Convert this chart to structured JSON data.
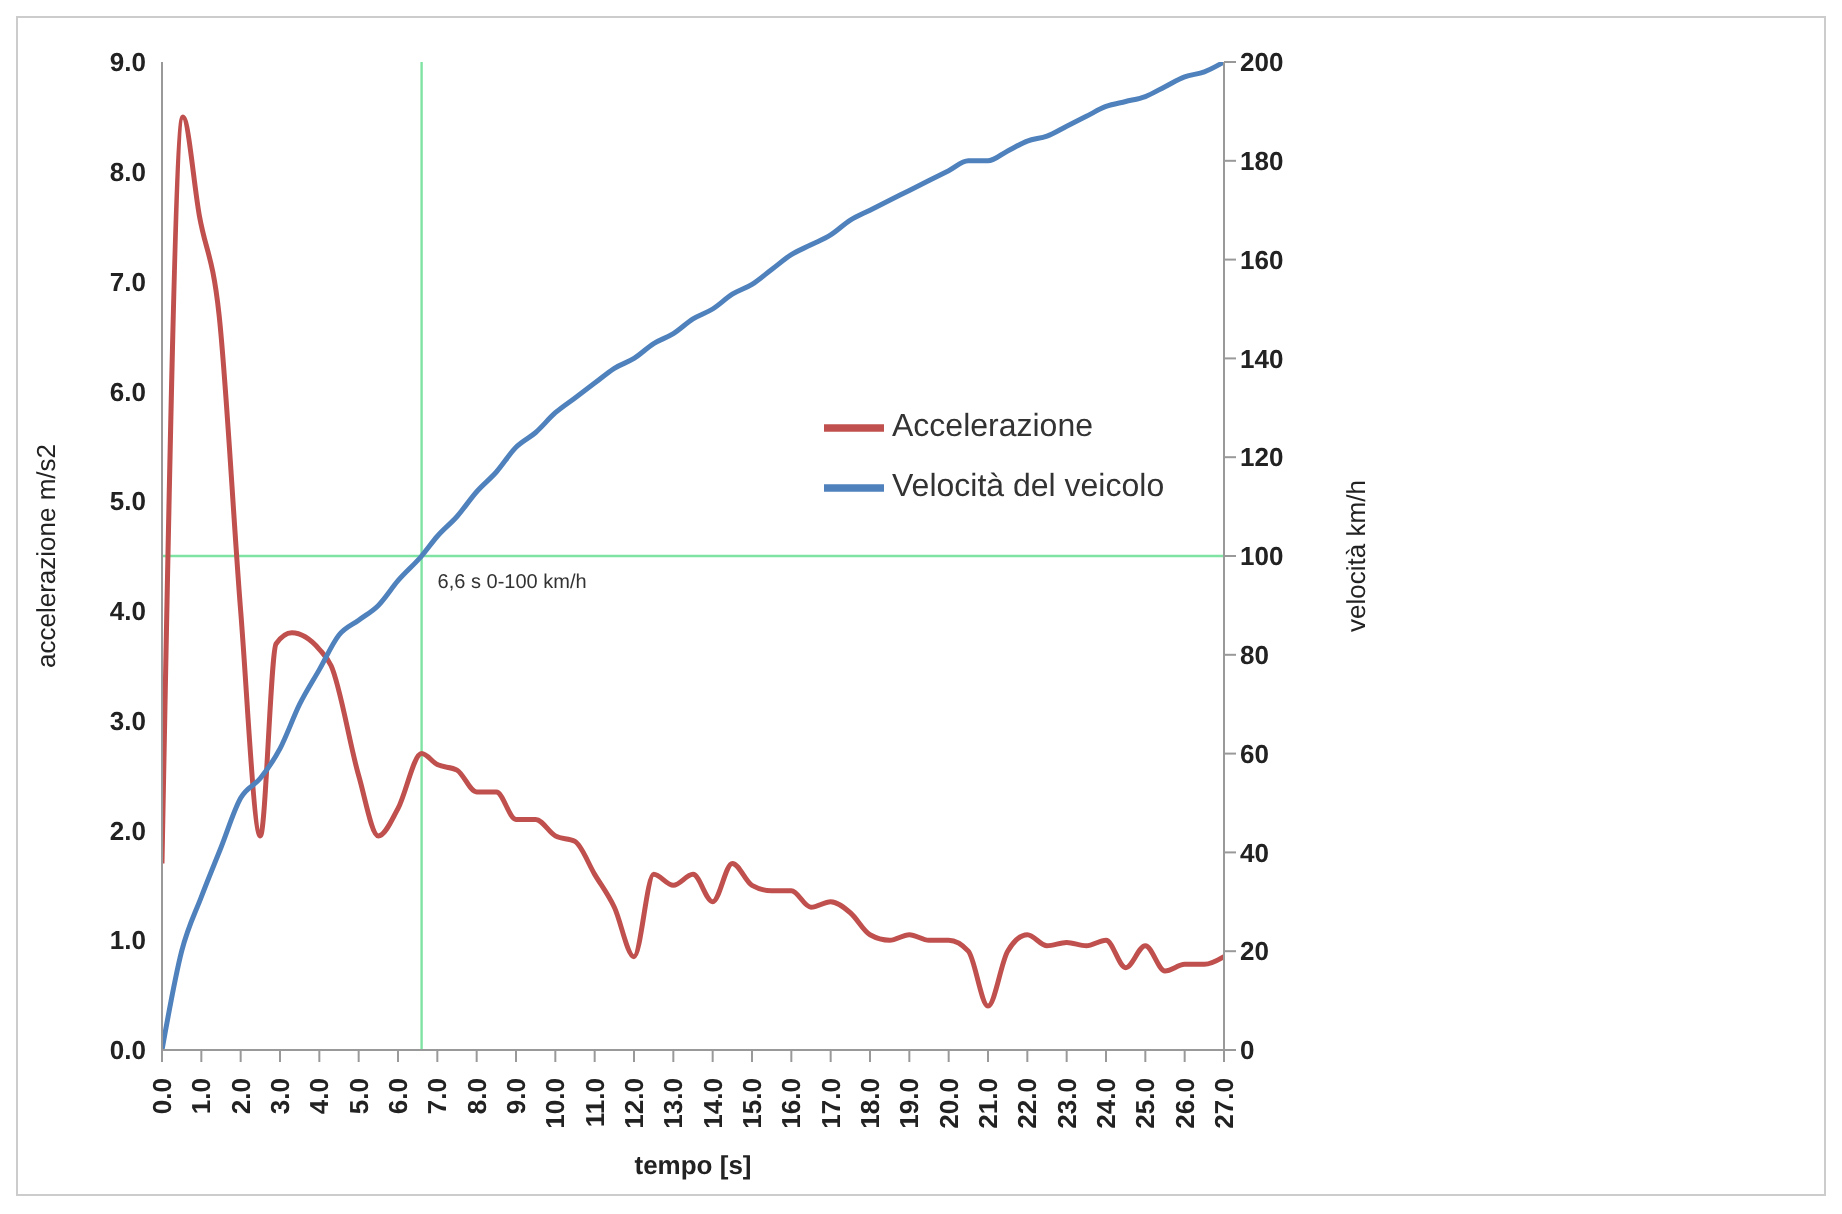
{
  "chart_data": {
    "type": "line",
    "xlabel": "tempo [s]",
    "ylabel": "accelerazione m/s2",
    "y2label": "velocità km/h",
    "series": [
      {
        "name": "Accelerazione",
        "color": "#c0504d",
        "axis": "y",
        "x": [
          0,
          0.53,
          0.95,
          1.45,
          2.0,
          2.5,
          2.9,
          3.3,
          4.0,
          4.3,
          5.0,
          5.5,
          6.0,
          6.6,
          7.0,
          7.5,
          8.0,
          8.5,
          9.0,
          9.5,
          10.0,
          10.5,
          11.0,
          11.5,
          12.0,
          12.5,
          13.0,
          13.5,
          14.0,
          14.5,
          15.0,
          15.5,
          16.0,
          16.5,
          17.0,
          17.5,
          18.0,
          18.5,
          19.0,
          19.5,
          20.0,
          20.5,
          21.0,
          21.5,
          22.0,
          22.5,
          23.0,
          23.5,
          24.0,
          24.5,
          25.0,
          25.5,
          26.0,
          26.5,
          27.0
        ],
        "values": [
          1.7,
          8.5,
          7.6,
          6.7,
          4.0,
          1.95,
          3.7,
          3.8,
          3.65,
          3.5,
          2.5,
          1.95,
          2.2,
          2.7,
          2.6,
          2.55,
          2.35,
          2.35,
          2.1,
          2.1,
          1.95,
          1.9,
          1.6,
          1.3,
          0.85,
          1.6,
          1.5,
          1.6,
          1.35,
          1.7,
          1.5,
          1.45,
          1.45,
          1.3,
          1.35,
          1.25,
          1.05,
          1.0,
          1.05,
          1.0,
          1.0,
          0.9,
          0.4,
          0.9,
          1.05,
          0.95,
          0.98,
          0.95,
          1.0,
          0.75,
          0.95,
          0.72,
          0.78,
          0.78,
          0.85
        ]
      },
      {
        "name": "Velocità del veicolo",
        "color": "#4f81bd",
        "axis": "y2",
        "x": [
          0,
          0.5,
          1,
          1.5,
          2,
          2.5,
          3,
          3.5,
          4,
          4.5,
          5,
          5.5,
          6,
          6.6,
          7,
          7.5,
          8,
          8.5,
          9,
          9.5,
          10,
          10.5,
          11,
          11.5,
          12,
          12.5,
          13,
          13.5,
          14,
          14.5,
          15,
          15.5,
          16,
          16.5,
          17,
          17.5,
          18,
          18.5,
          19,
          19.5,
          20,
          20.5,
          21,
          21.5,
          22,
          22.5,
          23,
          23.5,
          24,
          24.5,
          25,
          25.5,
          26,
          26.5,
          27
        ],
        "values": [
          0,
          20,
          31,
          41,
          51,
          55,
          61,
          70,
          77,
          84,
          87,
          90,
          95,
          100,
          104,
          108,
          113,
          117,
          122,
          125,
          129,
          132,
          135,
          138,
          140,
          143,
          145,
          148,
          150,
          153,
          155,
          158,
          161,
          163,
          165,
          168,
          170,
          172,
          174,
          176,
          178,
          180,
          180,
          182,
          184,
          185,
          187,
          189,
          191,
          192,
          193,
          195,
          197,
          198,
          200
        ]
      }
    ],
    "xlim": [
      0,
      27
    ],
    "xticks": [
      {
        "value": 0,
        "label": "0.0"
      },
      {
        "value": 1,
        "label": "1.0"
      },
      {
        "value": 2,
        "label": "2.0"
      },
      {
        "value": 3,
        "label": "3.0"
      },
      {
        "value": 4,
        "label": "4.0"
      },
      {
        "value": 5,
        "label": "5.0"
      },
      {
        "value": 6,
        "label": "6.0"
      },
      {
        "value": 7,
        "label": "7.0"
      },
      {
        "value": 8,
        "label": "8.0"
      },
      {
        "value": 9,
        "label": "9.0"
      },
      {
        "value": 10,
        "label": "10.0"
      },
      {
        "value": 11,
        "label": "11.0"
      },
      {
        "value": 12,
        "label": "12.0"
      },
      {
        "value": 13,
        "label": "13.0"
      },
      {
        "value": 14,
        "label": "14.0"
      },
      {
        "value": 15,
        "label": "15.0"
      },
      {
        "value": 16,
        "label": "16.0"
      },
      {
        "value": 17,
        "label": "17.0"
      },
      {
        "value": 18,
        "label": "18.0"
      },
      {
        "value": 19,
        "label": "19.0"
      },
      {
        "value": 20,
        "label": "20.0"
      },
      {
        "value": 21,
        "label": "21.0"
      },
      {
        "value": 22,
        "label": "22.0"
      },
      {
        "value": 23,
        "label": "23.0"
      },
      {
        "value": 24,
        "label": "24.0"
      },
      {
        "value": 25,
        "label": "25.0"
      },
      {
        "value": 26,
        "label": "26.0"
      },
      {
        "value": 27,
        "label": "27.0"
      }
    ],
    "ylim": [
      0,
      9
    ],
    "yticks": [
      {
        "value": 0,
        "label": "0.0"
      },
      {
        "value": 1,
        "label": "1.0"
      },
      {
        "value": 2,
        "label": "2.0"
      },
      {
        "value": 3,
        "label": "3.0"
      },
      {
        "value": 4,
        "label": "4.0"
      },
      {
        "value": 5,
        "label": "5.0"
      },
      {
        "value": 6,
        "label": "6.0"
      },
      {
        "value": 7,
        "label": "7.0"
      },
      {
        "value": 8,
        "label": "8.0"
      },
      {
        "value": 9,
        "label": "9.0"
      }
    ],
    "y2lim": [
      0,
      200
    ],
    "y2ticks": [
      0,
      20,
      40,
      60,
      80,
      100,
      120,
      140,
      160,
      180,
      200
    ],
    "ref_lines": [
      {
        "axis": "x",
        "value": 6.6,
        "label": "6,6 s 0-100 km/h",
        "color": "#7fe3a4"
      },
      {
        "axis": "y2",
        "value": 100,
        "color": "#7fe3a4"
      }
    ],
    "grid": false,
    "legend": "top right",
    "marker": "none",
    "line_style": "solid"
  }
}
